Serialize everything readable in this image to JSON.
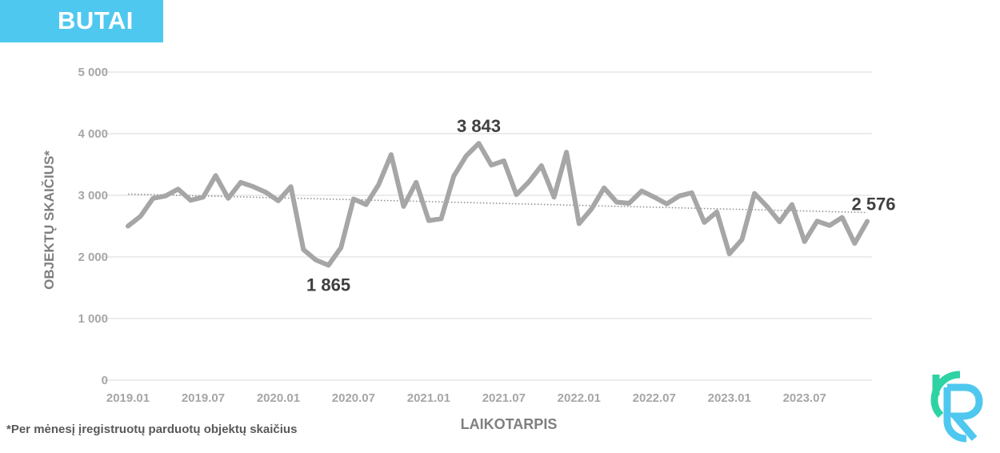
{
  "header": {
    "title": "BUTAI"
  },
  "footnote": "*Per mėnesį įregistruotų parduotų objektų skaičius",
  "logo": {
    "icon": "rc-logo-icon",
    "colors": [
      "#2ed3a3",
      "#4fc8ef"
    ]
  },
  "colors": {
    "banner": "#4fc8ef",
    "line": "#a6a6a6",
    "axis_text": "#a6a6a6",
    "grid": "#d9d9d9",
    "annotation": "#404040",
    "trend": "#8c8c8c"
  },
  "chart_data": {
    "type": "line",
    "title": "",
    "xlabel": "LAIKOTARPIS",
    "ylabel": "OBJEKTŲ SKAIČIUS*",
    "ylim": [
      0,
      5000
    ],
    "yticks": [
      0,
      1000,
      2000,
      3000,
      4000,
      5000
    ],
    "ytick_labels": [
      "0",
      "1 000",
      "2 000",
      "3 000",
      "4 000",
      "5 000"
    ],
    "xtick_labels": [
      "2019.01",
      "2019.07",
      "2020.01",
      "2020.07",
      "2021.01",
      "2021.07",
      "2022.01",
      "2022.07",
      "2023.01",
      "2023.07"
    ],
    "x_start": "2019.01",
    "x_end": "2023.11",
    "grid": true,
    "trendline": {
      "style": "dotted",
      "start": 3020,
      "end": 2720
    },
    "series": [
      {
        "name": "",
        "values": [
          2500,
          2660,
          2950,
          2990,
          3100,
          2920,
          2970,
          3320,
          2950,
          3210,
          3140,
          3050,
          2910,
          3140,
          2120,
          1950,
          1865,
          2150,
          2940,
          2850,
          3170,
          3660,
          2820,
          3210,
          2590,
          2620,
          3310,
          3640,
          3843,
          3490,
          3560,
          3010,
          3220,
          3480,
          2970,
          3700,
          2540,
          2780,
          3120,
          2890,
          2870,
          3070,
          2970,
          2860,
          2990,
          3040,
          2560,
          2730,
          2050,
          2280,
          3030,
          2820,
          2570,
          2850,
          2250,
          2580,
          2510,
          2640,
          2220,
          2576
        ]
      }
    ],
    "annotations": [
      {
        "text": "1 865",
        "index": 16,
        "value": 1865,
        "placement": "below"
      },
      {
        "text": "3 843",
        "index": 28,
        "value": 3843,
        "placement": "above"
      },
      {
        "text": "2 576",
        "index": 59,
        "value": 2576,
        "placement": "above"
      }
    ]
  }
}
